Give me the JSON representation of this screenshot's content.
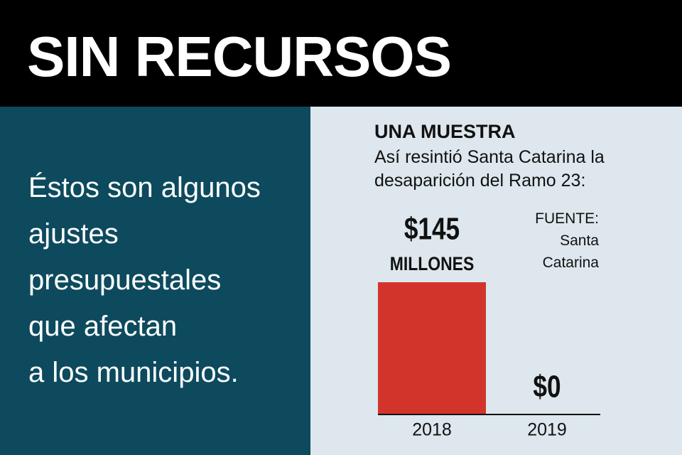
{
  "header": {
    "title": "SIN RECURSOS"
  },
  "body": {
    "lines": [
      "Éstos son algunos",
      "ajustes",
      "presupuestales",
      "que afectan",
      "a los municipios."
    ]
  },
  "chart_data": {
    "type": "bar",
    "title": "UNA MUESTRA",
    "subtitle": "Así resintió Santa Catarina la desaparición del Ramo 23:",
    "categories": [
      "2018",
      "2019"
    ],
    "values": [
      145,
      0
    ],
    "value_labels": [
      "$145",
      "$0"
    ],
    "unit": "MILLONES",
    "color": "#d2342b",
    "source_label": "FUENTE:",
    "source": "Santa Catarina"
  }
}
